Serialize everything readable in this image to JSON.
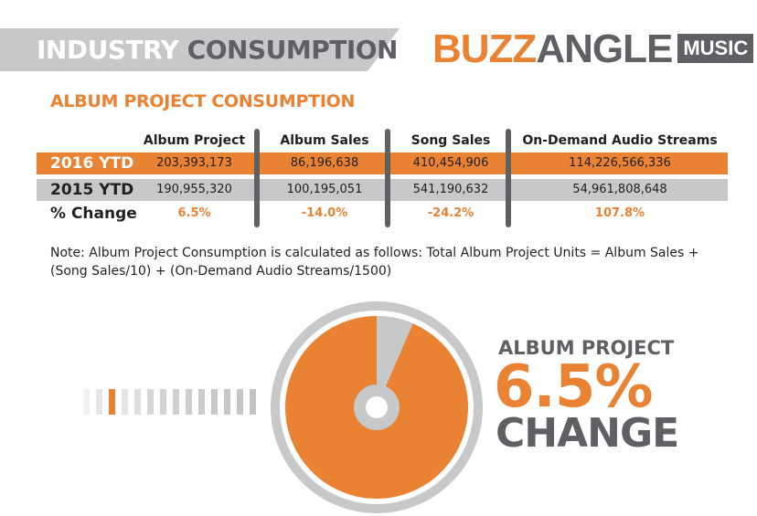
{
  "header": {
    "title_word1": "INDUSTRY",
    "title_word2": "CONSUMPTION",
    "logo_part1": "BUZZ",
    "logo_part2": "ANGLE",
    "logo_badge": "MUSIC"
  },
  "colors": {
    "accent": "#ea8234",
    "dark": "#5e6063",
    "light": "#c6c8ca"
  },
  "section_title": "ALBUM PROJECT CONSUMPTION",
  "chart_data": {
    "type": "table",
    "columns": [
      "Album Project",
      "Album Sales",
      "Song Sales",
      "On-Demand Audio Streams"
    ],
    "rows": [
      {
        "label": "2016 YTD",
        "values": [
          "203,393,173",
          "86,196,638",
          "410,454,906",
          "114,226,566,336"
        ]
      },
      {
        "label": "2015 YTD",
        "values": [
          "190,955,320",
          "100,195,051",
          "541,190,632",
          "54,961,808,648"
        ]
      },
      {
        "label": "% Change",
        "values": [
          "6.5%",
          "-14.0%",
          "-24.2%",
          "107.8%"
        ]
      }
    ]
  },
  "note": "Note: Album Project Consumption is calculated as follows: Total Album Project Units = Album Sales + (Song Sales/10) + (On-Demand Audio Streams/1500)",
  "highlight": {
    "label": "ALBUM PROJECT",
    "value": "6.5%",
    "suffix": "CHANGE",
    "pct": 6.5
  }
}
